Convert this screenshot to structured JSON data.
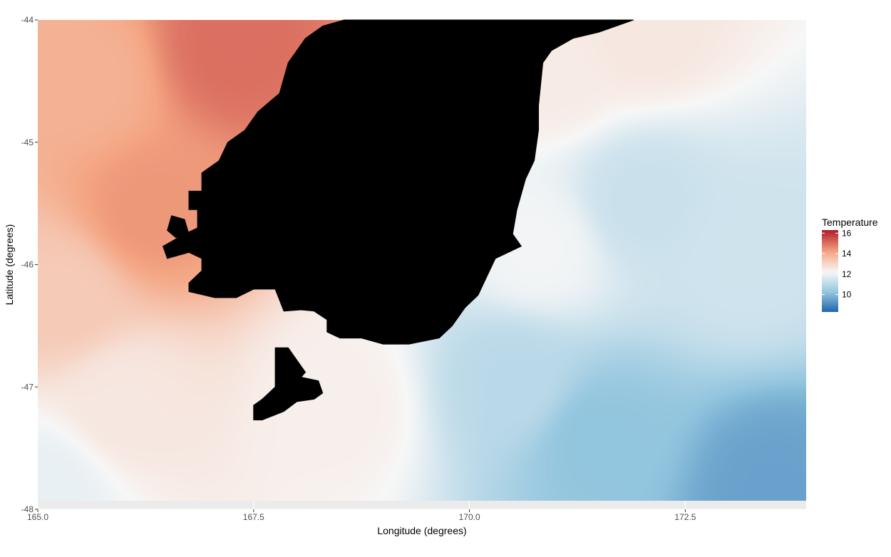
{
  "chart_data": {
    "type": "heatmap",
    "xlabel": "Longitude (degrees)",
    "ylabel": "Latitude (degrees)",
    "xlim": [
      165.0,
      173.9
    ],
    "ylim": [
      -48,
      -44
    ],
    "x_ticks": [
      {
        "value": 165.0,
        "label": "165.0"
      },
      {
        "value": 167.5,
        "label": "167.5"
      },
      {
        "value": 170.0,
        "label": "170.0"
      },
      {
        "value": 172.5,
        "label": "172.5"
      }
    ],
    "y_ticks": [
      {
        "value": -44,
        "label": "-44"
      },
      {
        "value": -45,
        "label": "-45"
      },
      {
        "value": -46,
        "label": "-46"
      },
      {
        "value": -47,
        "label": "-47"
      },
      {
        "value": -48,
        "label": "-48"
      }
    ],
    "grid": true,
    "legend": {
      "title": "Temperature",
      "placement": "right",
      "range": [
        8.3,
        16.3
      ],
      "ticks": [
        {
          "value": 16,
          "label": "16"
        },
        {
          "value": 14,
          "label": "14"
        },
        {
          "value": 12,
          "label": "12"
        },
        {
          "value": 10,
          "label": "10"
        }
      ]
    },
    "colors": {
      "low": "#2166ac",
      "mid_low": "#92c5de",
      "mid": "#f7f7f7",
      "mid_high": "#f4a582",
      "high": "#b2182b",
      "land": "#000000",
      "panel": "#ebebeb",
      "grid": "#ffffff"
    },
    "temperature_field": {
      "description_points": [
        {
          "lon": 167.3,
          "lat": -44.2,
          "temp": 15.0
        },
        {
          "lon": 165.5,
          "lat": -44.5,
          "temp": 13.9
        },
        {
          "lon": 166.3,
          "lat": -45.6,
          "temp": 14.4
        },
        {
          "lon": 165.3,
          "lat": -46.3,
          "temp": 13.3
        },
        {
          "lon": 166.0,
          "lat": -47.2,
          "temp": 12.6
        },
        {
          "lon": 165.1,
          "lat": -47.9,
          "temp": 11.9
        },
        {
          "lon": 168.5,
          "lat": -47.2,
          "temp": 12.4
        },
        {
          "lon": 172.0,
          "lat": -44.1,
          "temp": 12.6
        },
        {
          "lon": 171.0,
          "lat": -44.4,
          "temp": 12.5
        },
        {
          "lon": 170.8,
          "lat": -45.9,
          "temp": 12.1
        },
        {
          "lon": 172.0,
          "lat": -45.5,
          "temp": 11.3
        },
        {
          "lon": 173.2,
          "lat": -46.0,
          "temp": 11.4
        },
        {
          "lon": 170.5,
          "lat": -47.0,
          "temp": 11.0
        },
        {
          "lon": 171.5,
          "lat": -47.5,
          "temp": 10.2
        },
        {
          "lon": 173.5,
          "lat": -47.9,
          "temp": 9.5
        }
      ]
    },
    "land_polygons": [
      {
        "name": "South Island",
        "lonlat": [
          [
            168.55,
            -44.0
          ],
          [
            171.9,
            -44.0
          ],
          [
            171.5,
            -44.1
          ],
          [
            171.2,
            -44.15
          ],
          [
            170.95,
            -44.25
          ],
          [
            170.85,
            -44.35
          ],
          [
            170.8,
            -44.7
          ],
          [
            170.8,
            -44.9
          ],
          [
            170.75,
            -45.15
          ],
          [
            170.65,
            -45.3
          ],
          [
            170.55,
            -45.55
          ],
          [
            170.5,
            -45.75
          ],
          [
            170.6,
            -45.85
          ],
          [
            170.3,
            -45.95
          ],
          [
            170.2,
            -46.1
          ],
          [
            170.1,
            -46.25
          ],
          [
            169.95,
            -46.35
          ],
          [
            169.8,
            -46.5
          ],
          [
            169.65,
            -46.6
          ],
          [
            169.3,
            -46.65
          ],
          [
            169.0,
            -46.65
          ],
          [
            168.75,
            -46.6
          ],
          [
            168.5,
            -46.6
          ],
          [
            168.35,
            -46.55
          ],
          [
            168.35,
            -46.45
          ],
          [
            168.2,
            -46.38
          ],
          [
            168.05,
            -46.37
          ],
          [
            167.85,
            -46.38
          ],
          [
            167.75,
            -46.2
          ],
          [
            167.5,
            -46.2
          ],
          [
            167.3,
            -46.27
          ],
          [
            167.05,
            -46.27
          ],
          [
            166.75,
            -46.22
          ],
          [
            166.75,
            -46.15
          ],
          [
            166.9,
            -46.05
          ],
          [
            166.9,
            -45.95
          ],
          [
            166.75,
            -45.9
          ],
          [
            166.5,
            -45.95
          ],
          [
            166.45,
            -45.85
          ],
          [
            166.7,
            -45.75
          ],
          [
            166.85,
            -45.7
          ],
          [
            166.85,
            -45.55
          ],
          [
            166.75,
            -45.55
          ],
          [
            166.75,
            -45.4
          ],
          [
            166.9,
            -45.4
          ],
          [
            166.9,
            -45.25
          ],
          [
            167.1,
            -45.15
          ],
          [
            167.2,
            -45.0
          ],
          [
            167.4,
            -44.9
          ],
          [
            167.55,
            -44.75
          ],
          [
            167.8,
            -44.6
          ],
          [
            167.9,
            -44.35
          ],
          [
            168.1,
            -44.15
          ],
          [
            168.3,
            -44.05
          ]
        ]
      },
      {
        "name": "Resolution Island",
        "lonlat": [
          [
            166.55,
            -45.6
          ],
          [
            166.7,
            -45.63
          ],
          [
            166.75,
            -45.75
          ],
          [
            166.6,
            -45.78
          ],
          [
            166.5,
            -45.72
          ]
        ]
      },
      {
        "name": "Stewart Island",
        "lonlat": [
          [
            167.75,
            -46.68
          ],
          [
            167.9,
            -46.68
          ],
          [
            168.1,
            -46.88
          ],
          [
            168.05,
            -46.92
          ],
          [
            168.25,
            -46.95
          ],
          [
            168.3,
            -47.05
          ],
          [
            168.2,
            -47.1
          ],
          [
            168.0,
            -47.12
          ],
          [
            167.85,
            -47.2
          ],
          [
            167.6,
            -47.27
          ],
          [
            167.5,
            -47.27
          ],
          [
            167.5,
            -47.15
          ],
          [
            167.6,
            -47.1
          ],
          [
            167.75,
            -47.0
          ],
          [
            167.75,
            -46.8
          ]
        ]
      }
    ]
  }
}
